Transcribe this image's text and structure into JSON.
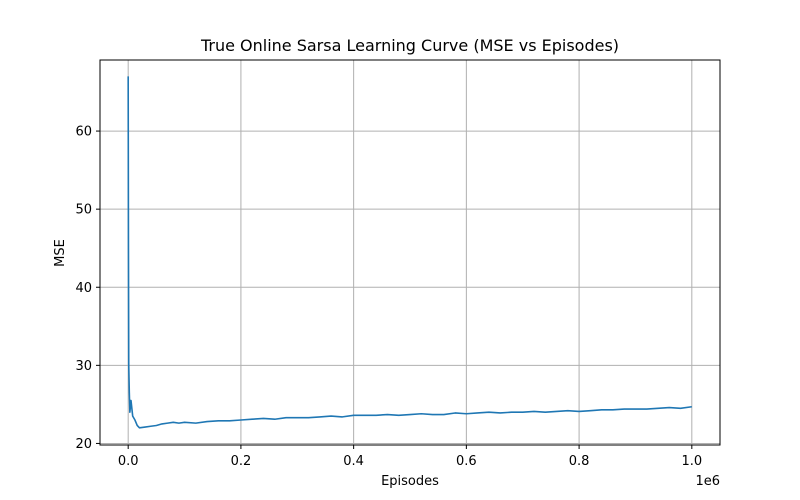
{
  "chart_data": {
    "type": "line",
    "title": "True Online Sarsa Learning Curve (MSE vs Episodes)",
    "xlabel": "Episodes",
    "ylabel": "MSE",
    "x_offset_label": "1e6",
    "x_ticks": [
      0,
      0.2,
      0.4,
      0.6,
      0.8,
      1.0
    ],
    "x_tick_labels": [
      "0.0",
      "0.2",
      "0.4",
      "0.6",
      "0.8",
      "1.0"
    ],
    "y_ticks": [
      20,
      30,
      40,
      50,
      60
    ],
    "y_tick_labels": [
      "20",
      "30",
      "40",
      "50",
      "60"
    ],
    "xlim": [
      -0.05,
      1.05
    ],
    "ylim": [
      19.8,
      69.1
    ],
    "grid": true,
    "color": "#1f77b4",
    "series": [
      {
        "x": [
          0.0,
          0.0005,
          0.001,
          0.002,
          0.003,
          0.005,
          0.008,
          0.012,
          0.016,
          0.02,
          0.03,
          0.04,
          0.05,
          0.06,
          0.07,
          0.08,
          0.09,
          0.1,
          0.12,
          0.14,
          0.16,
          0.18,
          0.2,
          0.22,
          0.24,
          0.26,
          0.28,
          0.3,
          0.32,
          0.34,
          0.36,
          0.38,
          0.4,
          0.42,
          0.44,
          0.46,
          0.48,
          0.5,
          0.52,
          0.54,
          0.56,
          0.58,
          0.6,
          0.62,
          0.64,
          0.66,
          0.68,
          0.7,
          0.72,
          0.74,
          0.76,
          0.78,
          0.8,
          0.82,
          0.84,
          0.86,
          0.88,
          0.9,
          0.92,
          0.94,
          0.96,
          0.98,
          1.0
        ],
        "y": [
          67.0,
          45.0,
          30.0,
          26.5,
          24.0,
          25.5,
          23.5,
          23.0,
          22.3,
          22.0,
          22.1,
          22.2,
          22.3,
          22.5,
          22.6,
          22.7,
          22.6,
          22.7,
          22.6,
          22.8,
          22.9,
          22.9,
          23.0,
          23.1,
          23.2,
          23.1,
          23.3,
          23.3,
          23.3,
          23.4,
          23.5,
          23.4,
          23.6,
          23.6,
          23.6,
          23.7,
          23.6,
          23.7,
          23.8,
          23.7,
          23.7,
          23.9,
          23.8,
          23.9,
          24.0,
          23.9,
          24.0,
          24.0,
          24.1,
          24.0,
          24.1,
          24.2,
          24.1,
          24.2,
          24.3,
          24.3,
          24.4,
          24.4,
          24.4,
          24.5,
          24.6,
          24.5,
          24.7
        ]
      }
    ]
  }
}
